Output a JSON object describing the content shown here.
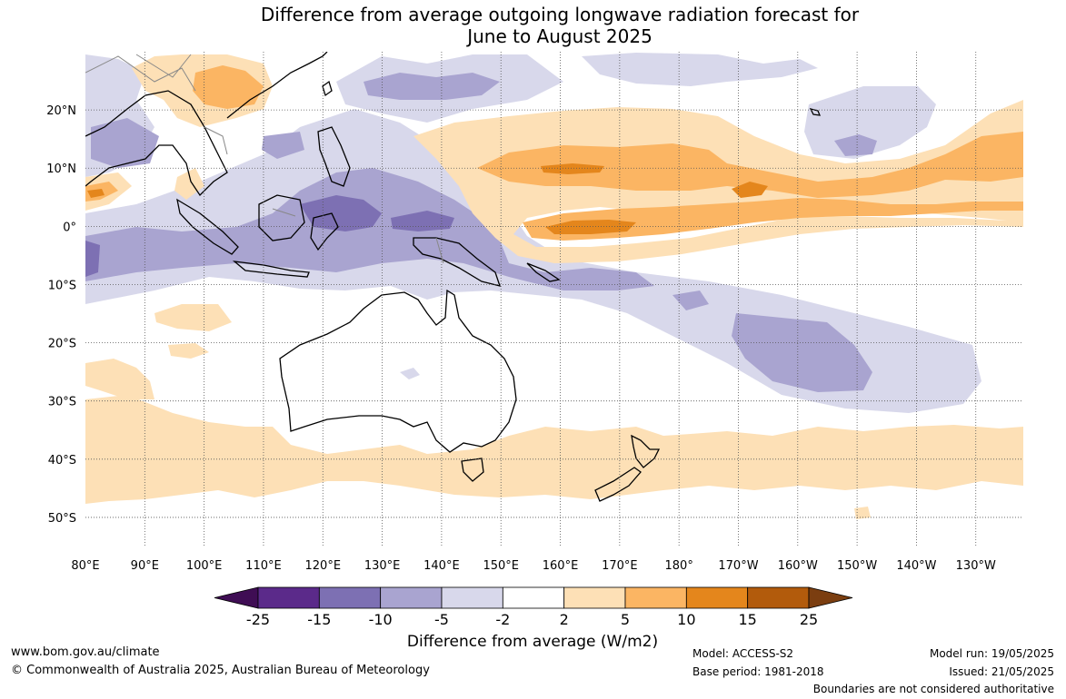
{
  "title": [
    "Difference from average outgoing longwave radiation forecast for",
    "June to August 2025"
  ],
  "map": {
    "lon_labels": [
      "80°E",
      "90°E",
      "100°E",
      "110°E",
      "120°E",
      "130°E",
      "140°E",
      "150°E",
      "160°E",
      "170°E",
      "180°",
      "170°W",
      "160°W",
      "150°W",
      "140°W",
      "130°W"
    ],
    "lat_labels": [
      "20°N",
      "10°N",
      "0°",
      "10°S",
      "20°S",
      "30°S",
      "40°S",
      "50°S"
    ],
    "gridlines": true,
    "colors": {
      "neg25": "#3f0d54",
      "neg15": "#5b2a8a",
      "neg10": "#7d70b3",
      "neg5": "#a9a4d0",
      "neg2": "#d8d8eb",
      "neutral": "#ffffff",
      "pos2": "#fde0b6",
      "pos5": "#fbb563",
      "pos10": "#e4861c",
      "pos15": "#b25b0c",
      "pos25": "#7b3e10",
      "coast": "#000000",
      "border": "#888888"
    }
  },
  "colorbar": {
    "ticks": [
      "-25",
      "-15",
      "-10",
      "-5",
      "-2",
      "2",
      "5",
      "10",
      "15",
      "25"
    ],
    "label": "Difference from average (W/m2)"
  },
  "footer": {
    "url": "www.bom.gov.au/climate",
    "copyright": "© Commonwealth of Australia 2025, Australian Bureau of Meteorology",
    "model": "Model: ACCESS-S2",
    "base_period": "Base period: 1981-2018",
    "model_run": "Model run: 19/05/2025",
    "issued": "Issued: 21/05/2025",
    "disclaimer": "Boundaries are not considered authoritative"
  }
}
